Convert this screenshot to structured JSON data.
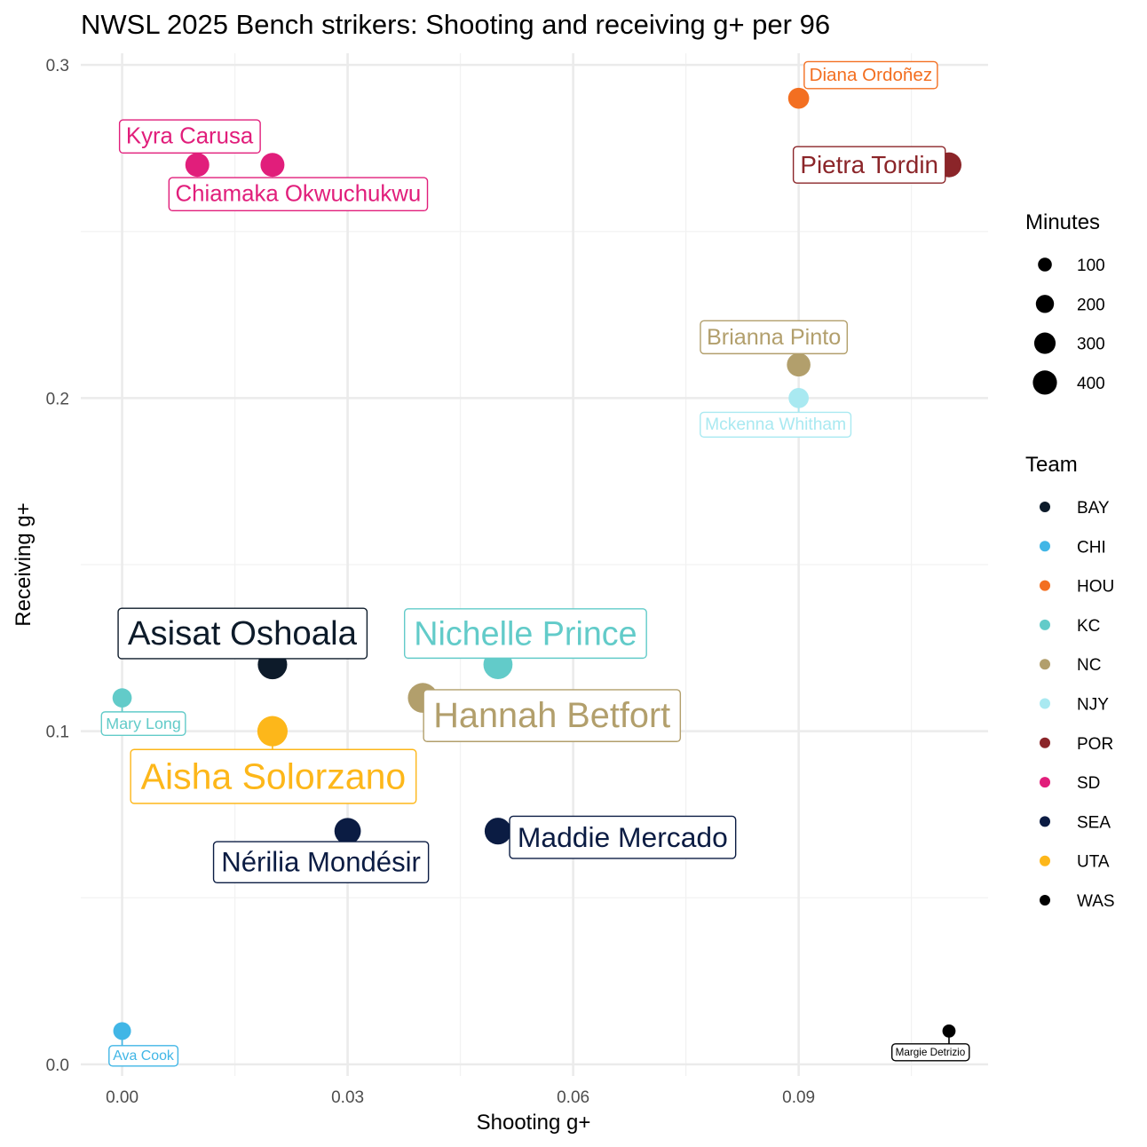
{
  "chart_data": {
    "type": "scatter",
    "title": "NWSL 2025 Bench strikers: Shooting and receiving g+ per 96",
    "xlabel": "Shooting g+",
    "ylabel": "Receiving g+",
    "xlim": [
      -0.0055,
      0.1152
    ],
    "ylim": [
      -0.0035,
      0.3035
    ],
    "x_ticks": [
      0.0,
      0.03,
      0.06,
      0.09
    ],
    "x_tick_labels": [
      "0.00",
      "0.03",
      "0.06",
      "0.09"
    ],
    "y_ticks": [
      0.0,
      0.1,
      0.2,
      0.3
    ],
    "y_tick_labels": [
      "0.0",
      "0.1",
      "0.2",
      "0.3"
    ],
    "grid": true,
    "legend_size": {
      "title": "Minutes",
      "entries": [
        {
          "label": "100",
          "value": 100
        },
        {
          "label": "200",
          "value": 200
        },
        {
          "label": "300",
          "value": 300
        },
        {
          "label": "400",
          "value": 400
        }
      ]
    },
    "legend_color": {
      "title": "Team",
      "entries": [
        {
          "label": "BAY",
          "color": "#0d1b2a"
        },
        {
          "label": "CHI",
          "color": "#41b6e6"
        },
        {
          "label": "HOU",
          "color": "#f36f21"
        },
        {
          "label": "KC",
          "color": "#62cbc9"
        },
        {
          "label": "NC",
          "color": "#b29f6c"
        },
        {
          "label": "NJY",
          "color": "#a9e9f1"
        },
        {
          "label": "POR",
          "color": "#8b2529"
        },
        {
          "label": "SD",
          "color": "#e11e7b"
        },
        {
          "label": "SEA",
          "color": "#0b1c43"
        },
        {
          "label": "UTA",
          "color": "#fdb71a"
        },
        {
          "label": "WAS",
          "color": "#000000"
        }
      ]
    },
    "points": [
      {
        "name": "Diana Ordoñez",
        "team": "HOU",
        "x": 0.09,
        "y": 0.29,
        "minutes": 160
      },
      {
        "name": "Kyra Carusa",
        "team": "SD",
        "x": 0.01,
        "y": 0.27,
        "minutes": 240
      },
      {
        "name": "Chiamaka Okwuchukwu",
        "team": "SD",
        "x": 0.02,
        "y": 0.27,
        "minutes": 240
      },
      {
        "name": "Pietra Tordin",
        "team": "POR",
        "x": 0.11,
        "y": 0.27,
        "minutes": 270
      },
      {
        "name": "Brianna Pinto",
        "team": "NC",
        "x": 0.09,
        "y": 0.21,
        "minutes": 230
      },
      {
        "name": "Mckenna Whitham",
        "team": "NJY",
        "x": 0.09,
        "y": 0.2,
        "minutes": 140
      },
      {
        "name": "Asisat Oshoala",
        "team": "BAY",
        "x": 0.02,
        "y": 0.12,
        "minutes": 430
      },
      {
        "name": "Nichelle Prince",
        "team": "KC",
        "x": 0.05,
        "y": 0.12,
        "minutes": 420
      },
      {
        "name": "Mary Long",
        "team": "KC",
        "x": 0.0,
        "y": 0.11,
        "minutes": 120
      },
      {
        "name": "Hannah Betfort",
        "team": "NC",
        "x": 0.04,
        "y": 0.11,
        "minutes": 450
      },
      {
        "name": "Aisha Solorzano",
        "team": "UTA",
        "x": 0.02,
        "y": 0.1,
        "minutes": 470
      },
      {
        "name": "Nérilia Mondésir",
        "team": "SEA",
        "x": 0.03,
        "y": 0.07,
        "minutes": 320
      },
      {
        "name": "Maddie Mercado",
        "team": "SEA",
        "x": 0.05,
        "y": 0.07,
        "minutes": 330
      },
      {
        "name": "Ava Cook",
        "team": "CHI",
        "x": 0.0,
        "y": 0.01,
        "minutes": 90
      },
      {
        "name": "Margie Detrizio",
        "team": "WAS",
        "x": 0.11,
        "y": 0.01,
        "minutes": 25
      }
    ]
  }
}
